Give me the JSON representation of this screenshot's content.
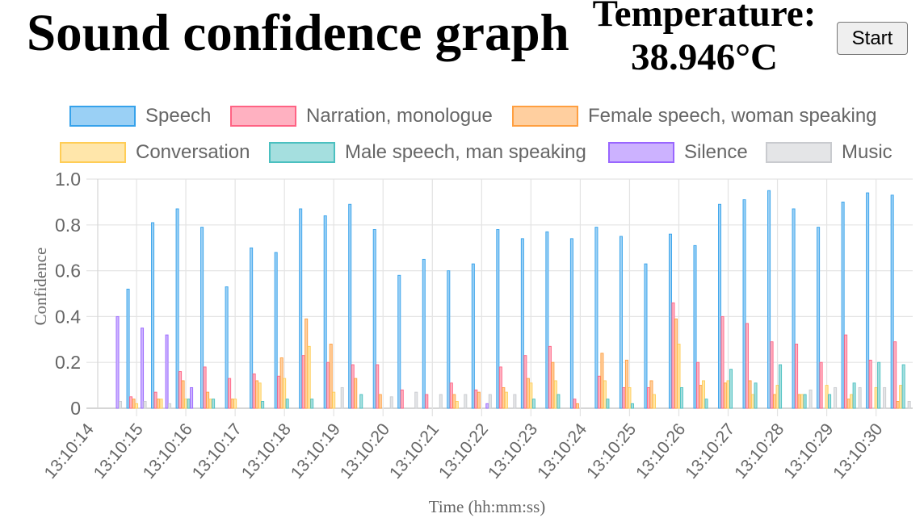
{
  "header": {
    "title": "Sound confidence graph",
    "temperature_label": "Temperature:",
    "temperature_value": "38.946°C",
    "start_button": "Start"
  },
  "chart_data": {
    "type": "bar",
    "xlabel": "Time (hh:mm:ss)",
    "ylabel": "Confidence",
    "ylim": [
      0,
      1
    ],
    "grid": true,
    "legend_position": "top",
    "y_ticks": [
      "0",
      "0.2",
      "0.4",
      "0.6",
      "0.8",
      "1.0"
    ],
    "x_ticks": [
      "13:10:14",
      "13:10:15",
      "13:10:16",
      "13:10:17",
      "13:10:18",
      "13:10:19",
      "13:10:20",
      "13:10:21",
      "13:10:22",
      "13:10:23",
      "13:10:24",
      "13:10:25",
      "13:10:26",
      "13:10:27",
      "13:10:28",
      "13:10:29",
      "13:10:30"
    ],
    "x": [
      "13:10:14.5",
      "13:10:15.0",
      "13:10:15.5",
      "13:10:16.0",
      "13:10:16.5",
      "13:10:17.0",
      "13:10:17.5",
      "13:10:18.0",
      "13:10:18.5",
      "13:10:19.0",
      "13:10:19.5",
      "13:10:20.0",
      "13:10:20.5",
      "13:10:21.0",
      "13:10:21.5",
      "13:10:22.0",
      "13:10:22.5",
      "13:10:23.0",
      "13:10:23.5",
      "13:10:24.0",
      "13:10:24.5",
      "13:10:25.0",
      "13:10:25.5",
      "13:10:26.0",
      "13:10:26.5",
      "13:10:27.0",
      "13:10:27.5",
      "13:10:28.0",
      "13:10:28.5",
      "13:10:29.0",
      "13:10:29.5",
      "13:10:30.0",
      "13:10:30.5"
    ],
    "series": [
      {
        "name": "Speech",
        "color": "#36a2eb",
        "fill": "#9ad0f5",
        "values": [
          0,
          0.52,
          0.81,
          0.87,
          0.79,
          0.53,
          0.7,
          0.68,
          0.87,
          0.84,
          0.89,
          0.78,
          0.58,
          0.65,
          0.6,
          0.63,
          0.78,
          0.74,
          0.77,
          0.74,
          0.79,
          0.75,
          0.63,
          0.76,
          0.71,
          0.89,
          0.91,
          0.95,
          0.87,
          0.79,
          0.9,
          0.94,
          0.93
        ]
      },
      {
        "name": "Narration, monologue",
        "color": "#ff6384",
        "fill": "#ffb1c1",
        "values": [
          0,
          0.05,
          0.07,
          0.16,
          0.18,
          0.13,
          0.15,
          0.14,
          0.23,
          0.2,
          0.19,
          0.19,
          0.08,
          0.06,
          0.11,
          0.08,
          0.18,
          0.23,
          0.27,
          0.04,
          0.14,
          0.09,
          0.09,
          0.46,
          0.2,
          0.4,
          0.37,
          0.29,
          0.28,
          0.2,
          0.32,
          0.21,
          0.29
        ]
      },
      {
        "name": "Female speech, woman speaking",
        "color": "#ff9f40",
        "fill": "#ffcf9f",
        "values": [
          0,
          0.04,
          0.04,
          0.12,
          0.07,
          0.04,
          0.12,
          0.22,
          0.39,
          0.28,
          0.13,
          0.06,
          0,
          0,
          0.06,
          0.07,
          0.09,
          0.13,
          0.2,
          0.02,
          0.24,
          0.21,
          0.12,
          0.39,
          0.1,
          0.11,
          0.12,
          0.06,
          0.06,
          0,
          0.04,
          0,
          0.03
        ]
      },
      {
        "name": "Conversation",
        "color": "#ffcd56",
        "fill": "#ffe6aa",
        "values": [
          0,
          0.02,
          0.04,
          0.04,
          0.04,
          0.04,
          0.11,
          0.13,
          0.27,
          0.07,
          0,
          0,
          0,
          0,
          0.03,
          0,
          0.07,
          0.11,
          0.12,
          0,
          0.12,
          0.09,
          0.06,
          0.28,
          0.12,
          0.12,
          0.06,
          0.1,
          0.06,
          0.1,
          0.06,
          0.09,
          0.1
        ]
      },
      {
        "name": "Male speech, man speaking",
        "color": "#4bc0c0",
        "fill": "#a5dfdf",
        "values": [
          0,
          0,
          0,
          0.04,
          0.04,
          0,
          0.03,
          0.04,
          0.04,
          0,
          0.06,
          0,
          0,
          0,
          0,
          0,
          0,
          0.04,
          0.06,
          0,
          0.04,
          0.02,
          0,
          0.09,
          0.04,
          0.17,
          0.11,
          0.19,
          0.06,
          0.06,
          0.11,
          0.2,
          0.19
        ]
      },
      {
        "name": "Silence",
        "color": "#9966ff",
        "fill": "#ccb2ff",
        "values": [
          0.4,
          0.35,
          0.32,
          0.09,
          0,
          0,
          0,
          0,
          0,
          0,
          0,
          0,
          0,
          0,
          0,
          0.02,
          0,
          0,
          0,
          0,
          0,
          0,
          0,
          0,
          0,
          0,
          0,
          0,
          0,
          0,
          0,
          0,
          0
        ]
      },
      {
        "name": "Music",
        "color": "#c9cbcf",
        "fill": "#e4e5e7",
        "values": [
          0.03,
          0.03,
          0.02,
          0,
          0,
          0,
          0,
          0,
          0,
          0.09,
          0,
          0.05,
          0.07,
          0.06,
          0.06,
          0.06,
          0.06,
          0,
          0,
          0,
          0,
          0,
          0,
          0,
          0,
          0,
          0,
          0,
          0.08,
          0.09,
          0.09,
          0.09,
          0.03
        ]
      }
    ]
  }
}
